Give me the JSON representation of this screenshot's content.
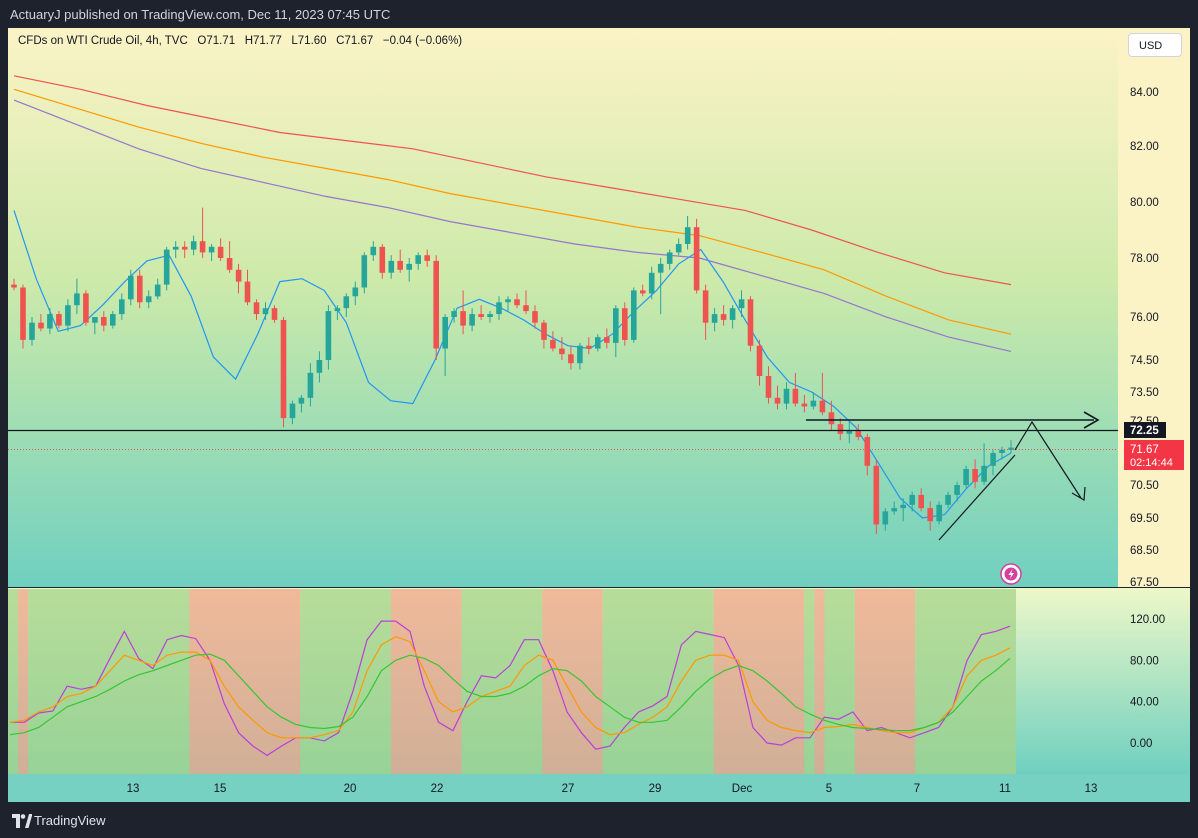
{
  "publish_line": "ActuaryJ published on TradingView.com, Dec 11, 2023 07:45 UTC",
  "legend": {
    "symbol": "CFDs on WTI Crude Oil, 4h, TVC",
    "open": "O71.71",
    "high": "H71.77",
    "low": "L71.60",
    "close": "C71.67",
    "change": "−0.04 (−0.06%)"
  },
  "currency_button": "USD",
  "footer_brand": "TradingView",
  "price_labels": {
    "level": "72.25",
    "last": "71.67",
    "countdown": "02:14:44"
  },
  "colors": {
    "up": "#26a69a",
    "down": "#ef5350",
    "ema_red": "#ef5350",
    "ema_orange": "#ff9800",
    "ema_purple": "#9575cd",
    "ema_blue": "#2196f3",
    "osc_fast": "#ba3fd8",
    "osc_mid": "#ff9800",
    "osc_slow": "#34c734",
    "zone_bull": "#a5d38a",
    "zone_bear": "#f0a48b"
  },
  "chart_data": [
    {
      "type": "candlestick",
      "timeframe": "4h",
      "x_ticks": [
        "13",
        "15",
        "20",
        "22",
        "27",
        "29",
        "Dec",
        "5",
        "7",
        "11",
        "13"
      ],
      "y_ticks": [
        "84.00",
        "82.00",
        "80.00",
        "78.00",
        "76.00",
        "74.50",
        "73.50",
        "72.50",
        "70.50",
        "69.50",
        "68.50",
        "67.50"
      ],
      "ylim": [
        67.5,
        85.0
      ],
      "horizontal_level": 72.25,
      "last_price": 71.67,
      "candles_ohlc": [
        [
          77.1,
          77.3,
          76.9,
          77.0
        ],
        [
          77.0,
          77.1,
          74.9,
          75.2
        ],
        [
          75.2,
          76.0,
          75.0,
          75.8
        ],
        [
          75.8,
          76.1,
          75.5,
          75.6
        ],
        [
          75.6,
          76.3,
          75.4,
          76.1
        ],
        [
          76.1,
          76.2,
          75.6,
          75.7
        ],
        [
          75.7,
          76.6,
          75.5,
          76.4
        ],
        [
          76.4,
          77.3,
          76.1,
          76.8
        ],
        [
          76.8,
          76.9,
          75.7,
          75.8
        ],
        [
          75.8,
          76.0,
          75.4,
          76.0
        ],
        [
          76.0,
          76.2,
          75.5,
          75.7
        ],
        [
          75.7,
          76.2,
          75.6,
          76.1
        ],
        [
          76.1,
          76.8,
          75.9,
          76.6
        ],
        [
          76.6,
          77.6,
          76.4,
          77.4
        ],
        [
          77.4,
          77.6,
          76.3,
          76.5
        ],
        [
          76.5,
          76.9,
          76.3,
          76.7
        ],
        [
          76.7,
          77.3,
          76.6,
          77.1
        ],
        [
          77.1,
          78.4,
          76.9,
          78.3
        ],
        [
          78.3,
          78.6,
          78.0,
          78.4
        ],
        [
          78.4,
          78.6,
          78.0,
          78.3
        ],
        [
          78.3,
          78.8,
          78.1,
          78.6
        ],
        [
          78.6,
          79.8,
          78.0,
          78.2
        ],
        [
          78.2,
          78.5,
          77.9,
          78.4
        ],
        [
          78.4,
          78.7,
          77.9,
          78.0
        ],
        [
          78.0,
          78.6,
          77.5,
          77.6
        ],
        [
          77.6,
          77.8,
          76.8,
          77.2
        ],
        [
          77.2,
          77.6,
          76.4,
          76.5
        ],
        [
          76.5,
          76.6,
          75.9,
          76.1
        ],
        [
          76.1,
          76.5,
          75.9,
          76.3
        ],
        [
          76.3,
          76.4,
          75.8,
          75.9
        ],
        [
          75.9,
          76.0,
          72.3,
          72.6
        ],
        [
          72.6,
          73.2,
          72.4,
          73.1
        ],
        [
          73.1,
          73.4,
          72.8,
          73.3
        ],
        [
          73.3,
          74.4,
          73.0,
          74.1
        ],
        [
          74.1,
          74.8,
          73.8,
          74.5
        ],
        [
          74.5,
          76.4,
          74.2,
          76.2
        ],
        [
          76.2,
          76.4,
          75.9,
          76.3
        ],
        [
          76.3,
          76.8,
          76.0,
          76.7
        ],
        [
          76.7,
          77.2,
          76.4,
          77.0
        ],
        [
          77.0,
          78.2,
          76.8,
          78.1
        ],
        [
          78.1,
          78.6,
          77.9,
          78.4
        ],
        [
          78.4,
          78.5,
          77.3,
          77.5
        ],
        [
          77.5,
          78.1,
          77.3,
          77.9
        ],
        [
          77.9,
          78.3,
          77.5,
          77.6
        ],
        [
          77.6,
          78.0,
          77.2,
          77.8
        ],
        [
          77.8,
          78.2,
          77.6,
          78.1
        ],
        [
          78.1,
          78.3,
          77.7,
          77.9
        ],
        [
          77.9,
          78.1,
          74.5,
          74.9
        ],
        [
          74.9,
          76.1,
          74.0,
          76.0
        ],
        [
          76.0,
          76.3,
          75.8,
          76.2
        ],
        [
          76.2,
          76.9,
          75.4,
          75.7
        ],
        [
          75.7,
          76.3,
          75.5,
          76.1
        ],
        [
          76.1,
          76.4,
          75.9,
          76.0
        ],
        [
          76.0,
          76.2,
          75.8,
          76.1
        ],
        [
          76.1,
          76.7,
          75.9,
          76.5
        ],
        [
          76.5,
          76.7,
          76.2,
          76.6
        ],
        [
          76.6,
          76.8,
          76.3,
          76.4
        ],
        [
          76.4,
          76.9,
          76.1,
          76.2
        ],
        [
          76.2,
          76.4,
          75.6,
          75.8
        ],
        [
          75.8,
          75.9,
          74.9,
          75.2
        ],
        [
          75.2,
          75.5,
          74.8,
          74.9
        ],
        [
          74.9,
          75.3,
          74.5,
          74.7
        ],
        [
          74.7,
          75.0,
          74.2,
          74.4
        ],
        [
          74.4,
          75.1,
          74.2,
          75.0
        ],
        [
          75.0,
          75.3,
          74.7,
          74.9
        ],
        [
          74.9,
          75.4,
          74.8,
          75.3
        ],
        [
          75.3,
          75.6,
          74.9,
          75.1
        ],
        [
          75.1,
          76.4,
          74.6,
          76.3
        ],
        [
          76.3,
          76.5,
          75.0,
          75.2
        ],
        [
          75.2,
          77.0,
          75.1,
          76.9
        ],
        [
          76.9,
          77.1,
          76.7,
          76.8
        ],
        [
          76.8,
          77.7,
          76.6,
          77.5
        ],
        [
          77.5,
          78.0,
          76.1,
          77.8
        ],
        [
          77.8,
          78.3,
          77.6,
          78.2
        ],
        [
          78.2,
          78.7,
          78.1,
          78.5
        ],
        [
          78.5,
          79.5,
          78.3,
          79.1
        ],
        [
          79.1,
          79.4,
          76.8,
          76.9
        ],
        [
          76.9,
          77.1,
          75.2,
          75.8
        ],
        [
          75.8,
          76.3,
          75.5,
          76.1
        ],
        [
          76.1,
          76.4,
          75.7,
          75.9
        ],
        [
          75.9,
          76.4,
          75.6,
          76.3
        ],
        [
          76.3,
          76.9,
          76.0,
          76.6
        ],
        [
          76.6,
          76.7,
          74.8,
          75.0
        ],
        [
          75.0,
          75.2,
          73.7,
          74.0
        ],
        [
          74.0,
          74.3,
          73.1,
          73.3
        ],
        [
          73.3,
          73.7,
          72.9,
          73.1
        ],
        [
          73.1,
          73.8,
          72.9,
          73.6
        ],
        [
          73.6,
          74.1,
          73.0,
          73.1
        ],
        [
          73.1,
          73.4,
          72.8,
          73.0
        ],
        [
          73.0,
          73.5,
          72.9,
          73.2
        ],
        [
          73.2,
          74.1,
          72.7,
          72.8
        ],
        [
          72.8,
          73.2,
          72.2,
          72.4
        ],
        [
          72.4,
          72.6,
          71.9,
          72.1
        ],
        [
          72.1,
          72.5,
          71.8,
          72.2
        ],
        [
          72.2,
          72.4,
          71.9,
          72.0
        ],
        [
          72.0,
          72.1,
          70.8,
          71.1
        ],
        [
          71.1,
          71.3,
          69.0,
          69.3
        ],
        [
          69.3,
          69.8,
          69.1,
          69.7
        ],
        [
          69.7,
          70.0,
          69.6,
          69.8
        ],
        [
          69.8,
          70.1,
          69.4,
          69.9
        ],
        [
          69.9,
          70.3,
          69.7,
          70.2
        ],
        [
          70.2,
          70.4,
          69.7,
          69.8
        ],
        [
          69.8,
          70.0,
          69.1,
          69.4
        ],
        [
          69.4,
          70.0,
          69.3,
          69.9
        ],
        [
          69.9,
          70.3,
          69.8,
          70.2
        ],
        [
          70.2,
          70.6,
          70.0,
          70.5
        ],
        [
          70.5,
          71.1,
          70.4,
          71.0
        ],
        [
          71.0,
          71.3,
          70.4,
          70.6
        ],
        [
          70.6,
          71.8,
          70.5,
          71.1
        ],
        [
          71.1,
          71.6,
          70.8,
          71.5
        ],
        [
          71.5,
          71.7,
          71.3,
          71.6
        ],
        [
          71.6,
          71.9,
          71.5,
          71.67
        ]
      ],
      "moving_averages": [
        {
          "color_key": "ema_red",
          "values": [
            84.6,
            84.1,
            83.5,
            83.0,
            82.5,
            82.2,
            81.9,
            81.4,
            80.9,
            80.5,
            80.1,
            79.7,
            79.0,
            78.2,
            77.5,
            77.1
          ]
        },
        {
          "color_key": "ema_orange",
          "values": [
            84.1,
            83.4,
            82.7,
            82.1,
            81.6,
            81.2,
            80.8,
            80.3,
            79.9,
            79.5,
            79.1,
            78.8,
            78.2,
            77.6,
            76.7,
            75.9,
            75.4
          ]
        },
        {
          "color_key": "ema_purple",
          "values": [
            83.7,
            82.8,
            81.9,
            81.2,
            80.7,
            80.2,
            79.8,
            79.3,
            78.9,
            78.5,
            78.2,
            78.0,
            77.4,
            76.8,
            76.0,
            75.3,
            74.8
          ]
        },
        {
          "color_key": "ema_blue",
          "values": [
            79.7,
            77.3,
            75.5,
            75.7,
            76.4,
            77.2,
            77.9,
            78.1,
            76.7,
            74.6,
            73.9,
            75.4,
            77.2,
            77.3,
            76.9,
            75.8,
            73.8,
            73.2,
            73.1,
            74.5,
            76.3,
            76.6,
            76.3,
            75.9,
            75.4,
            75.0,
            74.9,
            75.4,
            76.2,
            76.9,
            77.8,
            78.3,
            77.2,
            75.9,
            74.6,
            73.8,
            73.5,
            73.0,
            72.3,
            71.2,
            70.1,
            69.5,
            69.6,
            70.4,
            71.1,
            71.5
          ]
        }
      ]
    },
    {
      "type": "line",
      "y_ticks": [
        "120.00",
        "80.00",
        "40.00",
        "0.00"
      ],
      "ylim": [
        -30,
        150
      ],
      "zones": [
        {
          "state": "bull",
          "from": 0.0,
          "to": 0.01
        },
        {
          "state": "bear",
          "from": 0.01,
          "to": 0.02
        },
        {
          "state": "bull",
          "from": 0.02,
          "to": 0.18
        },
        {
          "state": "bear",
          "from": 0.18,
          "to": 0.29
        },
        {
          "state": "bull",
          "from": 0.29,
          "to": 0.38
        },
        {
          "state": "bear",
          "from": 0.38,
          "to": 0.45
        },
        {
          "state": "bull",
          "from": 0.45,
          "to": 0.53
        },
        {
          "state": "bear",
          "from": 0.53,
          "to": 0.59
        },
        {
          "state": "bull",
          "from": 0.59,
          "to": 0.7
        },
        {
          "state": "bear",
          "from": 0.7,
          "to": 0.79
        },
        {
          "state": "bull",
          "from": 0.79,
          "to": 0.8
        },
        {
          "state": "bear",
          "from": 0.8,
          "to": 0.81
        },
        {
          "state": "bull",
          "from": 0.81,
          "to": 0.84
        },
        {
          "state": "bear",
          "from": 0.84,
          "to": 0.9
        },
        {
          "state": "bull",
          "from": 0.9,
          "to": 1.0
        }
      ],
      "series": [
        {
          "color_key": "osc_fast",
          "values": [
            20,
            20,
            29,
            31,
            55,
            52,
            55,
            82,
            108,
            82,
            72,
            100,
            104,
            101,
            80,
            38,
            10,
            -3,
            -12,
            -3,
            5,
            5,
            2,
            10,
            50,
            100,
            118,
            118,
            108,
            55,
            20,
            12,
            40,
            65,
            63,
            75,
            100,
            100,
            70,
            30,
            10,
            -6,
            -3,
            15,
            30,
            36,
            45,
            95,
            108,
            105,
            102,
            75,
            15,
            0,
            -2,
            5,
            5,
            25,
            23,
            30,
            12,
            15,
            10,
            5,
            10,
            15,
            35,
            80,
            105,
            108,
            113
          ]
        },
        {
          "color_key": "osc_mid",
          "values": [
            20,
            22,
            30,
            35,
            45,
            48,
            55,
            70,
            85,
            80,
            75,
            85,
            88,
            88,
            80,
            55,
            35,
            22,
            10,
            5,
            5,
            5,
            8,
            12,
            30,
            70,
            95,
            103,
            98,
            70,
            40,
            30,
            35,
            45,
            50,
            55,
            75,
            85,
            80,
            55,
            30,
            15,
            8,
            10,
            18,
            25,
            35,
            60,
            80,
            85,
            85,
            80,
            40,
            22,
            15,
            12,
            10,
            15,
            16,
            18,
            15,
            12,
            10,
            10,
            15,
            20,
            35,
            65,
            80,
            85,
            92
          ]
        },
        {
          "color_key": "osc_slow",
          "values": [
            8,
            10,
            15,
            25,
            35,
            40,
            45,
            52,
            60,
            66,
            70,
            75,
            80,
            85,
            86,
            80,
            65,
            50,
            35,
            25,
            18,
            15,
            14,
            16,
            25,
            45,
            70,
            80,
            85,
            82,
            75,
            62,
            50,
            45,
            45,
            48,
            55,
            65,
            72,
            70,
            60,
            45,
            35,
            25,
            20,
            20,
            22,
            35,
            50,
            62,
            70,
            75,
            70,
            60,
            48,
            35,
            28,
            22,
            18,
            15,
            14,
            13,
            12,
            12,
            15,
            20,
            30,
            45,
            60,
            70,
            82
          ]
        }
      ]
    }
  ]
}
